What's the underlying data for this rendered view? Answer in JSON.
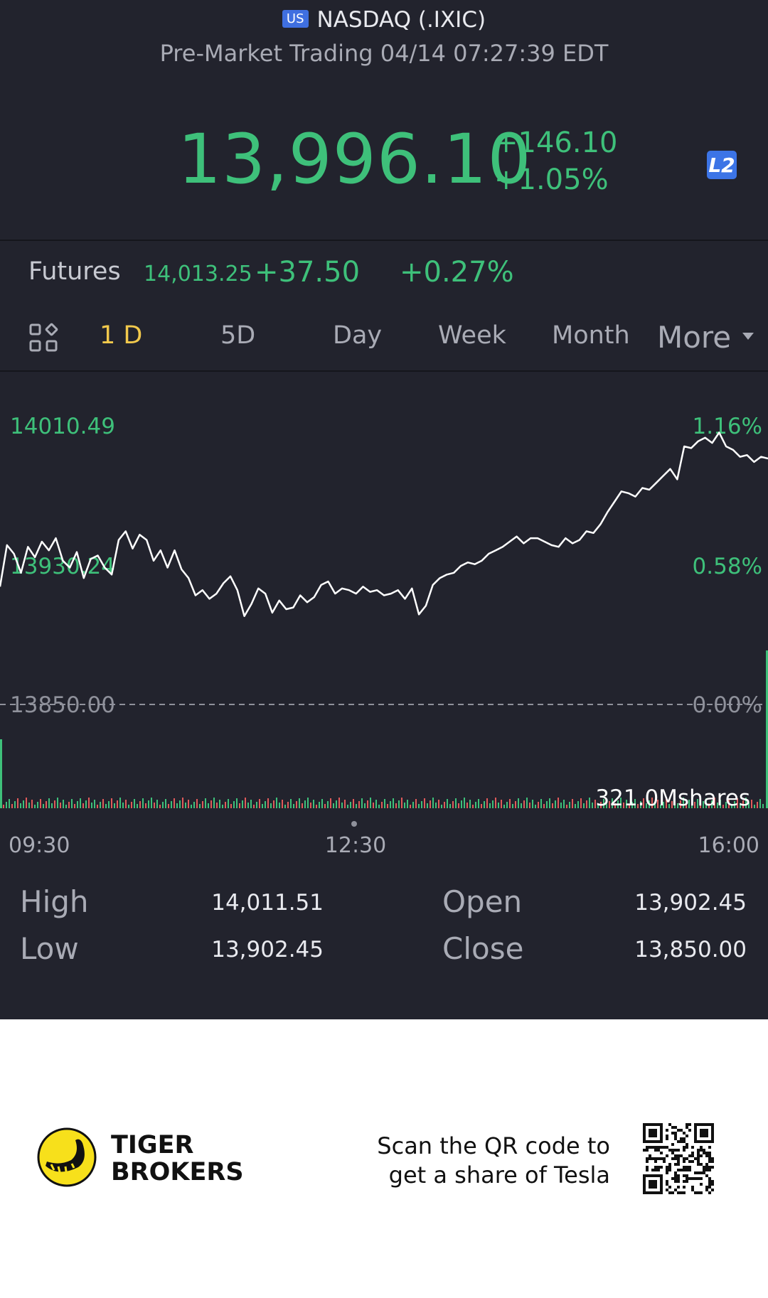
{
  "header": {
    "market_flag": "US",
    "title": "NASDAQ (.IXIC)",
    "status_line": "Pre-Market Trading 04/14 07:27:39 EDT",
    "price": "13,996.10",
    "change": "+146.10",
    "change_pct": "+1.05%",
    "level2_badge": "L2"
  },
  "futures": {
    "label": "Futures",
    "price": "14,013.25",
    "change": "+37.50",
    "change_pct": "+0.27%"
  },
  "tabs": [
    {
      "label": "1 D",
      "active": true
    },
    {
      "label": "5D",
      "active": false
    },
    {
      "label": "Day",
      "active": false
    },
    {
      "label": "Week",
      "active": false
    },
    {
      "label": "Month",
      "active": false
    }
  ],
  "more_label": "More",
  "chart_data": {
    "type": "line",
    "y_labels_left": [
      "14010.49",
      "13930.24",
      "13850.00"
    ],
    "y_labels_right": [
      "1.16%",
      "0.58%",
      "0.00%"
    ],
    "ylim": [
      13850.0,
      14010.49
    ],
    "reference_line": 13850.0,
    "x_labels": [
      "09:30",
      "12:30",
      "16:00"
    ],
    "volume_label": "321.0Mshares",
    "series": [
      {
        "values": [
          13918,
          13942,
          13937,
          13926,
          13941,
          13935,
          13944,
          13939,
          13946,
          13933,
          13929,
          13938,
          13923,
          13934,
          13936,
          13929,
          13925,
          13945,
          13950,
          13940,
          13948,
          13945,
          13933,
          13939,
          13929,
          13939,
          13928,
          13923,
          13913,
          13916,
          13911,
          13914,
          13920,
          13924,
          13916,
          13901,
          13908,
          13917,
          13914,
          13903,
          13910,
          13905,
          13906,
          13913,
          13909,
          13912,
          13919,
          13921,
          13914,
          13917,
          13916,
          13914,
          13918,
          13915,
          13916,
          13913,
          13914,
          13916,
          13911,
          13917,
          13902,
          13907,
          13919,
          13923,
          13925,
          13926,
          13930,
          13932,
          13931,
          13933,
          13937,
          13939,
          13941,
          13944,
          13947,
          13943,
          13946,
          13946,
          13944,
          13942,
          13941,
          13946,
          13943,
          13945,
          13950,
          13949,
          13954,
          13961,
          13967,
          13973,
          13972,
          13970,
          13975,
          13974,
          13978,
          13982,
          13986,
          13980,
          13999,
          13998,
          14002,
          14004,
          14001,
          14007,
          13999,
          13997,
          13993,
          13994,
          13990,
          13993,
          13992
        ]
      }
    ]
  },
  "stats": {
    "high_label": "High",
    "high_value": "14,011.51",
    "low_label": "Low",
    "low_value": "13,902.45",
    "open_label": "Open",
    "open_value": "13,902.45",
    "close_label": "Close",
    "close_value": "13,850.00"
  },
  "footer": {
    "brand_line1": "TIGER",
    "brand_line2": "BROKERS",
    "scan_line1": "Scan the QR code to",
    "scan_line2": "get a share of Tesla"
  },
  "colors": {
    "background": "#22232d",
    "up_green": "#3ec07a",
    "down_red": "#e05a5a",
    "active_tab": "#f2c94c",
    "badge_blue": "#3c74e6",
    "logo_yellow": "#f7e01b"
  }
}
